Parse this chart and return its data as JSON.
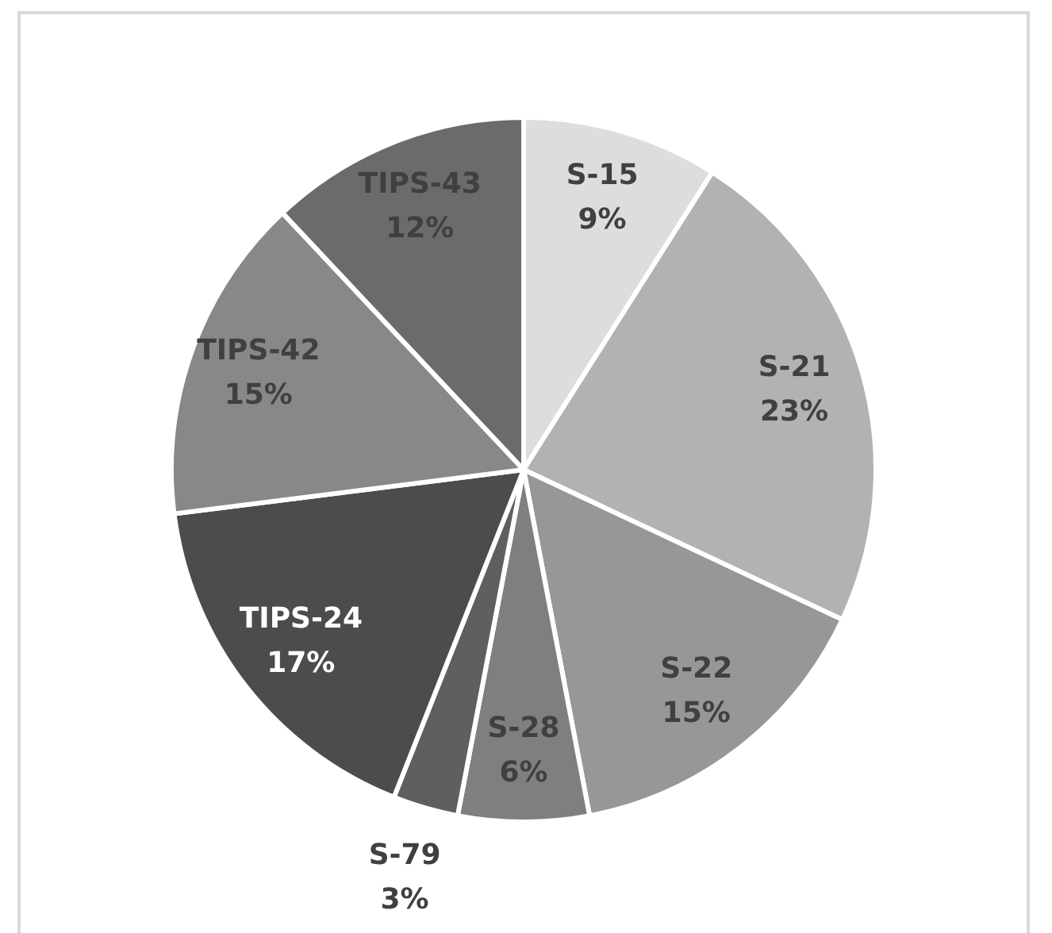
{
  "chart_data": {
    "type": "pie",
    "categories": [
      "S-15",
      "S-21",
      "S-22",
      "S-28",
      "S-79",
      "TIPS-24",
      "TIPS-42",
      "TIPS-43"
    ],
    "values": [
      9,
      23,
      15,
      6,
      3,
      17,
      15,
      12
    ],
    "colors": [
      "#dddddd",
      "#b2b2b2",
      "#979797",
      "#7f7f7f",
      "#5f5f5f",
      "#4c4c4c",
      "#888888",
      "#6b6b6b"
    ],
    "value_labels": [
      "9%",
      "23%",
      "15%",
      "6%",
      "3%",
      "17%",
      "15%",
      "12%"
    ]
  }
}
